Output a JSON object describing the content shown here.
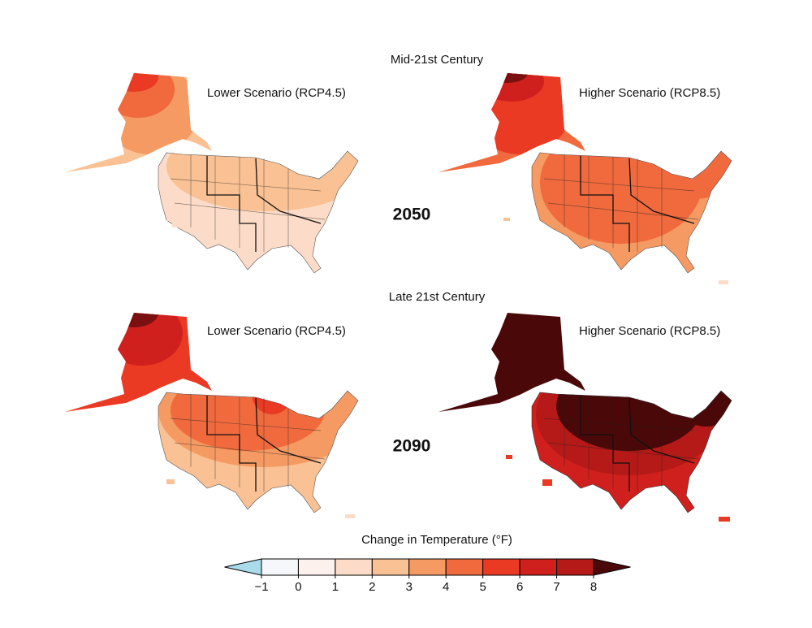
{
  "rows": [
    {
      "title": "Mid-21st Century",
      "year": "2050",
      "panels": [
        {
          "label": "Lower Scenario (RCP4.5)"
        },
        {
          "label": "Higher Scenario (RCP8.5)"
        }
      ]
    },
    {
      "title": "Late 21st Century",
      "year": "2090",
      "panels": [
        {
          "label": "Lower Scenario (RCP4.5)"
        },
        {
          "label": "Higher Scenario (RCP8.5)"
        }
      ]
    }
  ],
  "colorbar": {
    "title": "Change in Temperature (°F)",
    "ticks": [
      {
        "value": -1,
        "label": "−1"
      },
      0,
      1,
      2,
      3,
      4,
      5,
      6,
      7,
      8
    ],
    "colors": [
      "#f6f7fb",
      "#fdf1ee",
      "#fcdcc8",
      "#f9c194",
      "#f59a62",
      "#f06a3e",
      "#ea3a24",
      "#d0201d",
      "#b51a18"
    ],
    "under_color": "#a9dbea",
    "over_color": "#4a0808"
  }
}
